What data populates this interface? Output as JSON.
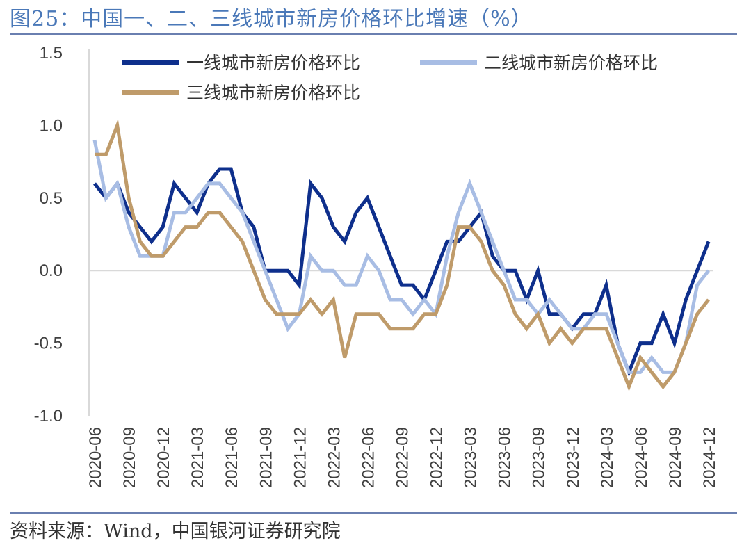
{
  "title": "图25：中国一、二、三线城市新房价格环比增速（%）",
  "source": "资料来源：Wind，中国银河证券研究院",
  "chart_data": {
    "type": "line",
    "title": "图25：中国一、二、三线城市新房价格环比增速（%）",
    "xlabel": "",
    "ylabel": "",
    "ylim": [
      -1.0,
      1.5
    ],
    "y_ticks": [
      -1.0,
      -0.5,
      0.0,
      0.5,
      1.0,
      1.5
    ],
    "y_tick_labels": [
      "-1.0",
      "-0.5",
      "0.0",
      "0.5",
      "1.0",
      "1.5"
    ],
    "x": [
      "2020-06",
      "2020-07",
      "2020-08",
      "2020-09",
      "2020-10",
      "2020-11",
      "2020-12",
      "2021-01",
      "2021-02",
      "2021-03",
      "2021-04",
      "2021-05",
      "2021-06",
      "2021-07",
      "2021-08",
      "2021-09",
      "2021-10",
      "2021-11",
      "2021-12",
      "2022-01",
      "2022-02",
      "2022-03",
      "2022-04",
      "2022-05",
      "2022-06",
      "2022-07",
      "2022-08",
      "2022-09",
      "2022-10",
      "2022-11",
      "2022-12",
      "2023-01",
      "2023-02",
      "2023-03",
      "2023-04",
      "2023-05",
      "2023-06",
      "2023-07",
      "2023-08",
      "2023-09",
      "2023-10",
      "2023-11",
      "2023-12",
      "2024-01",
      "2024-02",
      "2024-03",
      "2024-04",
      "2024-05",
      "2024-06",
      "2024-07",
      "2024-08",
      "2024-09",
      "2024-10",
      "2024-11",
      "2024-12"
    ],
    "x_tick_labels": [
      "2020-06",
      "2020-09",
      "2020-12",
      "2021-03",
      "2021-06",
      "2021-09",
      "2021-12",
      "2022-03",
      "2022-06",
      "2022-09",
      "2022-12",
      "2023-03",
      "2023-06",
      "2023-09",
      "2023-12",
      "2024-03",
      "2024-06",
      "2024-09",
      "2024-12"
    ],
    "legend_position": "top",
    "grid": false,
    "series": [
      {
        "name": "一线城市新房价格环比",
        "color": "#0e2f8c",
        "values": [
          0.6,
          0.5,
          0.6,
          0.4,
          0.3,
          0.2,
          0.3,
          0.6,
          0.5,
          0.4,
          0.6,
          0.7,
          0.7,
          0.4,
          0.3,
          0.0,
          0.0,
          0.0,
          -0.1,
          0.6,
          0.5,
          0.3,
          0.2,
          0.4,
          0.5,
          0.3,
          0.1,
          -0.1,
          -0.1,
          -0.2,
          0.0,
          0.2,
          0.2,
          0.3,
          0.4,
          0.1,
          0.0,
          0.0,
          -0.2,
          0.0,
          -0.3,
          -0.3,
          -0.4,
          -0.3,
          -0.3,
          -0.1,
          -0.5,
          -0.7,
          -0.5,
          -0.5,
          -0.3,
          -0.5,
          -0.2,
          0.0,
          0.2
        ]
      },
      {
        "name": "二线城市新房价格环比",
        "color": "#a8bde4",
        "values": [
          0.9,
          0.5,
          0.6,
          0.3,
          0.1,
          0.1,
          0.1,
          0.4,
          0.4,
          0.5,
          0.6,
          0.6,
          0.5,
          0.4,
          0.2,
          0.0,
          -0.2,
          -0.4,
          -0.3,
          0.1,
          0.0,
          0.0,
          -0.1,
          -0.1,
          0.1,
          0.0,
          -0.2,
          -0.2,
          -0.3,
          -0.2,
          -0.3,
          0.1,
          0.4,
          0.6,
          0.4,
          0.2,
          0.0,
          -0.2,
          -0.2,
          -0.3,
          -0.2,
          -0.3,
          -0.4,
          -0.4,
          -0.3,
          -0.3,
          -0.5,
          -0.7,
          -0.7,
          -0.6,
          -0.7,
          -0.7,
          -0.5,
          -0.1,
          0.0
        ]
      },
      {
        "name": "三线城市新房价格环比",
        "color": "#bf9b6a",
        "values": [
          0.8,
          0.8,
          1.0,
          0.5,
          0.2,
          0.1,
          0.1,
          0.2,
          0.3,
          0.3,
          0.4,
          0.4,
          0.3,
          0.2,
          0.0,
          -0.2,
          -0.3,
          -0.3,
          -0.3,
          -0.2,
          -0.3,
          -0.2,
          -0.6,
          -0.3,
          -0.3,
          -0.3,
          -0.4,
          -0.4,
          -0.4,
          -0.3,
          -0.3,
          -0.1,
          0.3,
          0.3,
          0.2,
          0.0,
          -0.1,
          -0.3,
          -0.4,
          -0.3,
          -0.5,
          -0.4,
          -0.5,
          -0.4,
          -0.4,
          -0.4,
          -0.6,
          -0.8,
          -0.6,
          -0.7,
          -0.8,
          -0.7,
          -0.5,
          -0.3,
          -0.2
        ]
      }
    ]
  }
}
